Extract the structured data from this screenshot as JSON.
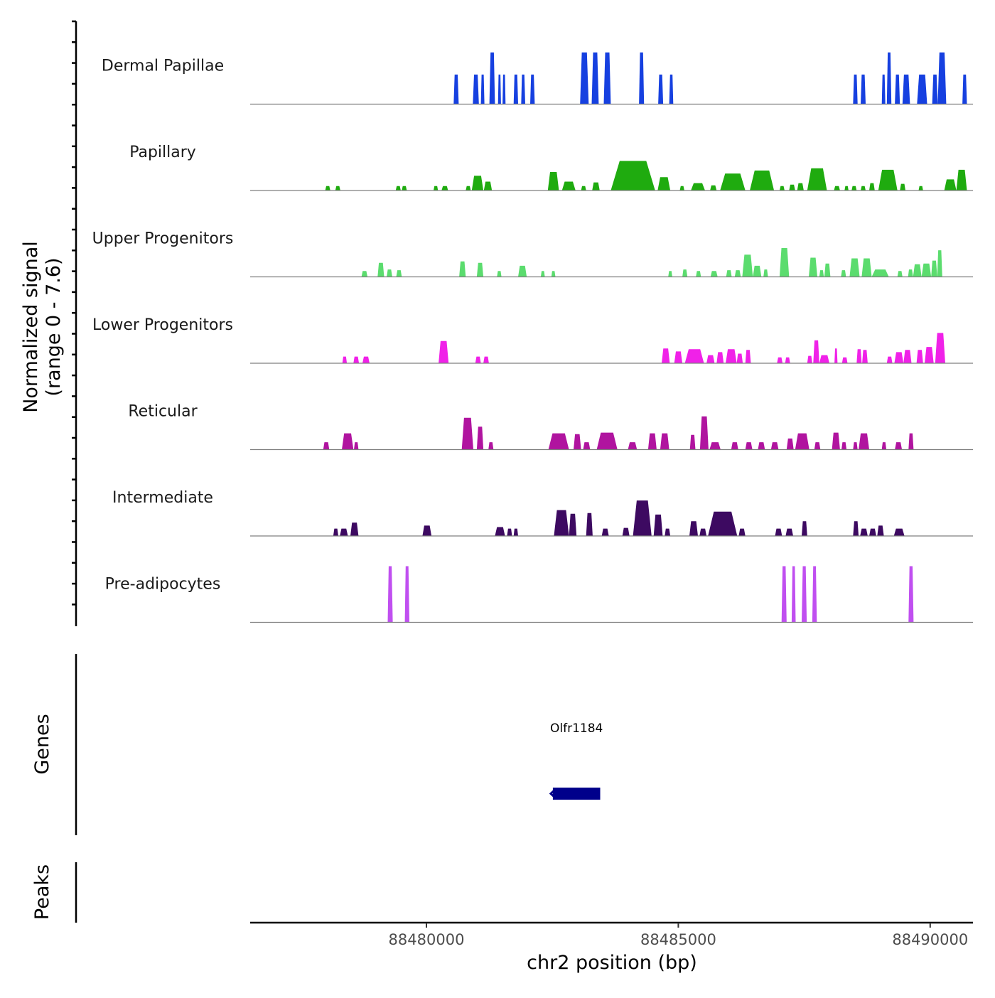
{
  "chart_data": {
    "type": "genome-browser-coverage",
    "y_axis_title": "Normalized signal",
    "y_axis_subtitle": "(range 0 - 7.6)",
    "ylim": [
      0,
      7.6
    ],
    "x_axis_title": "chr2 position (bp)",
    "xlim": [
      88476500,
      88490850
    ],
    "x_ticks": [
      88480000,
      88485000,
      88490000
    ],
    "x_tick_labels": [
      "88480000",
      "88485000",
      "88490000"
    ],
    "tracks": [
      {
        "name": "Dermal Papillae",
        "color": "#1640e0",
        "regions": [
          [
            88480540,
            88480640,
            4.0
          ],
          [
            88480920,
            88481040,
            4.0
          ],
          [
            88481080,
            88481150,
            4.0
          ],
          [
            88481250,
            88481360,
            7.0
          ],
          [
            88481420,
            88481480,
            4.0
          ],
          [
            88481510,
            88481570,
            4.0
          ],
          [
            88481730,
            88481820,
            4.0
          ],
          [
            88481880,
            88481960,
            4.0
          ],
          [
            88482060,
            88482150,
            4.0
          ],
          [
            88483050,
            88483220,
            7.0
          ],
          [
            88483280,
            88483420,
            7.0
          ],
          [
            88483520,
            88483660,
            7.0
          ],
          [
            88484220,
            88484320,
            7.0
          ],
          [
            88484600,
            88484700,
            4.0
          ],
          [
            88484820,
            88484900,
            4.0
          ],
          [
            88488470,
            88488560,
            4.0
          ],
          [
            88488620,
            88488720,
            4.0
          ],
          [
            88489040,
            88489110,
            4.0
          ],
          [
            88489140,
            88489230,
            7.0
          ],
          [
            88489300,
            88489400,
            4.0
          ],
          [
            88489450,
            88489600,
            4.0
          ],
          [
            88489740,
            88489940,
            4.0
          ],
          [
            88490040,
            88490150,
            4.0
          ],
          [
            88490150,
            88490320,
            7.0
          ],
          [
            88490640,
            88490730,
            4.0
          ]
        ]
      },
      {
        "name": "Papillary",
        "color": "#1fab0f",
        "regions": [
          [
            88477990,
            88478090,
            0.6
          ],
          [
            88478190,
            88478290,
            0.6
          ],
          [
            88479390,
            88479490,
            0.6
          ],
          [
            88479510,
            88479610,
            0.6
          ],
          [
            88480140,
            88480230,
            0.6
          ],
          [
            88480300,
            88480430,
            0.6
          ],
          [
            88480780,
            88480880,
            0.6
          ],
          [
            88480900,
            88481130,
            2.0
          ],
          [
            88481140,
            88481300,
            1.2
          ],
          [
            88482410,
            88482630,
            2.5
          ],
          [
            88482690,
            88482960,
            1.2
          ],
          [
            88483070,
            88483170,
            0.6
          ],
          [
            88483290,
            88483440,
            1.1
          ],
          [
            88483660,
            88484540,
            4.0
          ],
          [
            88484590,
            88484840,
            1.8
          ],
          [
            88485030,
            88485120,
            0.6
          ],
          [
            88485250,
            88485530,
            1.0
          ],
          [
            88485630,
            88485760,
            0.7
          ],
          [
            88485830,
            88486330,
            2.3
          ],
          [
            88486420,
            88486900,
            2.7
          ],
          [
            88487010,
            88487110,
            0.6
          ],
          [
            88487200,
            88487320,
            0.8
          ],
          [
            88487360,
            88487490,
            1.0
          ],
          [
            88487560,
            88487950,
            3.0
          ],
          [
            88488090,
            88488210,
            0.6
          ],
          [
            88488300,
            88488380,
            0.6
          ],
          [
            88488440,
            88488540,
            0.6
          ],
          [
            88488620,
            88488720,
            0.6
          ],
          [
            88488790,
            88488900,
            1.0
          ],
          [
            88488970,
            88489350,
            2.8
          ],
          [
            88489400,
            88489510,
            0.9
          ],
          [
            88489770,
            88489860,
            0.6
          ],
          [
            88490280,
            88490520,
            1.5
          ],
          [
            88490520,
            88490730,
            2.8
          ]
        ]
      },
      {
        "name": "Upper Progenitors",
        "color": "#5bdc6e",
        "regions": [
          [
            88478710,
            88478830,
            0.8
          ],
          [
            88479030,
            88479160,
            1.9
          ],
          [
            88479210,
            88479320,
            1.0
          ],
          [
            88479400,
            88479510,
            0.9
          ],
          [
            88480650,
            88480780,
            2.1
          ],
          [
            88481000,
            88481130,
            1.9
          ],
          [
            88481400,
            88481490,
            0.8
          ],
          [
            88481820,
            88481990,
            1.5
          ],
          [
            88482270,
            88482350,
            0.8
          ],
          [
            88482480,
            88482560,
            0.8
          ],
          [
            88484800,
            88484880,
            0.8
          ],
          [
            88485080,
            88485180,
            1.0
          ],
          [
            88485350,
            88485450,
            0.8
          ],
          [
            88485640,
            88485780,
            0.8
          ],
          [
            88485950,
            88486060,
            0.9
          ],
          [
            88486120,
            88486240,
            0.9
          ],
          [
            88486270,
            88486480,
            3.0
          ],
          [
            88486480,
            88486650,
            1.5
          ],
          [
            88486690,
            88486780,
            1.0
          ],
          [
            88487010,
            88487200,
            3.9
          ],
          [
            88487590,
            88487760,
            2.6
          ],
          [
            88487800,
            88487890,
            0.9
          ],
          [
            88487900,
            88488020,
            1.8
          ],
          [
            88488230,
            88488330,
            0.9
          ],
          [
            88488400,
            88488600,
            2.5
          ],
          [
            88488640,
            88488840,
            2.5
          ],
          [
            88488840,
            88489180,
            1.0
          ],
          [
            88489350,
            88489450,
            0.8
          ],
          [
            88489560,
            88489660,
            1.0
          ],
          [
            88489660,
            88489830,
            1.7
          ],
          [
            88489830,
            88490020,
            1.8
          ],
          [
            88490020,
            88490140,
            2.2
          ],
          [
            88490140,
            88490240,
            3.6
          ]
        ]
      },
      {
        "name": "Lower Progenitors",
        "color": "#f021e8",
        "regions": [
          [
            88478330,
            88478420,
            0.9
          ],
          [
            88478550,
            88478660,
            0.9
          ],
          [
            88478730,
            88478870,
            0.9
          ],
          [
            88480240,
            88480440,
            3.0
          ],
          [
            88480970,
            88481080,
            0.9
          ],
          [
            88481130,
            88481240,
            0.9
          ],
          [
            88484670,
            88484830,
            2.0
          ],
          [
            88484920,
            88485080,
            1.6
          ],
          [
            88485130,
            88485510,
            1.9
          ],
          [
            88485560,
            88485720,
            1.1
          ],
          [
            88485760,
            88485900,
            1.5
          ],
          [
            88485940,
            88486160,
            1.9
          ],
          [
            88486160,
            88486280,
            1.3
          ],
          [
            88486330,
            88486440,
            1.8
          ],
          [
            88486960,
            88487070,
            0.8
          ],
          [
            88487120,
            88487220,
            0.8
          ],
          [
            88487560,
            88487660,
            1.0
          ],
          [
            88487680,
            88487800,
            3.1
          ],
          [
            88487800,
            88488000,
            1.1
          ],
          [
            88488100,
            88488160,
            2.0
          ],
          [
            88488250,
            88488360,
            0.8
          ],
          [
            88488540,
            88488640,
            1.9
          ],
          [
            88488650,
            88488760,
            1.8
          ],
          [
            88489140,
            88489250,
            0.9
          ],
          [
            88489290,
            88489470,
            1.5
          ],
          [
            88489470,
            88489630,
            1.8
          ],
          [
            88489730,
            88489860,
            1.8
          ],
          [
            88489890,
            88490070,
            2.2
          ],
          [
            88490100,
            88490300,
            4.1
          ]
        ]
      },
      {
        "name": "Reticular",
        "color": "#b0149f",
        "regions": [
          [
            88477950,
            88478070,
            1.0
          ],
          [
            88478320,
            88478550,
            2.2
          ],
          [
            88478560,
            88478650,
            1.0
          ],
          [
            88480700,
            88480930,
            4.3
          ],
          [
            88481000,
            88481130,
            3.1
          ],
          [
            88481230,
            88481330,
            1.0
          ],
          [
            88482420,
            88482830,
            2.2
          ],
          [
            88482920,
            88483070,
            2.1
          ],
          [
            88483110,
            88483250,
            1.0
          ],
          [
            88483380,
            88483790,
            2.3
          ],
          [
            88484000,
            88484180,
            1.0
          ],
          [
            88484400,
            88484570,
            2.2
          ],
          [
            88484640,
            88484820,
            2.2
          ],
          [
            88485230,
            88485340,
            2.0
          ],
          [
            88485430,
            88485600,
            4.5
          ],
          [
            88485620,
            88485840,
            1.0
          ],
          [
            88486050,
            88486190,
            1.0
          ],
          [
            88486330,
            88486470,
            1.0
          ],
          [
            88486580,
            88486720,
            1.0
          ],
          [
            88486840,
            88486990,
            1.0
          ],
          [
            88487150,
            88487290,
            1.5
          ],
          [
            88487320,
            88487600,
            2.2
          ],
          [
            88487700,
            88487820,
            1.0
          ],
          [
            88488050,
            88488210,
            2.3
          ],
          [
            88488240,
            88488340,
            1.0
          ],
          [
            88488470,
            88488560,
            1.0
          ],
          [
            88488580,
            88488790,
            2.2
          ],
          [
            88489040,
            88489130,
            1.0
          ],
          [
            88489300,
            88489440,
            1.0
          ],
          [
            88489570,
            88489670,
            2.2
          ]
        ]
      },
      {
        "name": "Intermediate",
        "color": "#3d0a61",
        "regions": [
          [
            88478150,
            88478250,
            1.0
          ],
          [
            88478280,
            88478440,
            1.0
          ],
          [
            88478490,
            88478650,
            1.8
          ],
          [
            88479920,
            88480100,
            1.4
          ],
          [
            88481360,
            88481560,
            1.2
          ],
          [
            88481600,
            88481700,
            1.0
          ],
          [
            88481730,
            88481820,
            1.0
          ],
          [
            88482530,
            88482830,
            3.5
          ],
          [
            88482830,
            88482980,
            3.0
          ],
          [
            88483170,
            88483300,
            3.1
          ],
          [
            88483480,
            88483620,
            1.0
          ],
          [
            88483890,
            88484030,
            1.1
          ],
          [
            88484100,
            88484470,
            4.8
          ],
          [
            88484510,
            88484690,
            2.9
          ],
          [
            88484730,
            88484840,
            1.0
          ],
          [
            88485220,
            88485390,
            2.0
          ],
          [
            88485420,
            88485560,
            1.0
          ],
          [
            88485590,
            88486170,
            3.3
          ],
          [
            88486200,
            88486330,
            1.0
          ],
          [
            88486920,
            88487060,
            1.0
          ],
          [
            88487130,
            88487280,
            1.0
          ],
          [
            88487450,
            88487560,
            2.0
          ],
          [
            88488470,
            88488580,
            2.0
          ],
          [
            88488610,
            88488760,
            1.0
          ],
          [
            88488790,
            88488930,
            1.0
          ],
          [
            88488950,
            88489080,
            1.4
          ],
          [
            88489280,
            88489490,
            1.0
          ]
        ]
      },
      {
        "name": "Pre-adipocytes",
        "color": "#c04ff0",
        "regions": [
          [
            88479230,
            88479330,
            7.6
          ],
          [
            88479570,
            88479660,
            7.6
          ],
          [
            88487050,
            88487150,
            7.6
          ],
          [
            88487250,
            88487330,
            7.6
          ],
          [
            88487450,
            88487550,
            7.6
          ],
          [
            88487660,
            88487750,
            7.6
          ],
          [
            88489570,
            88489670,
            7.6
          ]
        ]
      }
    ],
    "genes_track_title": "Genes",
    "genes": [
      {
        "name": "Olfr1184",
        "start": 88482510,
        "end": 88483450,
        "strand": "-",
        "color": "#00008b"
      }
    ],
    "peaks_track_title": "Peaks",
    "peaks": []
  }
}
